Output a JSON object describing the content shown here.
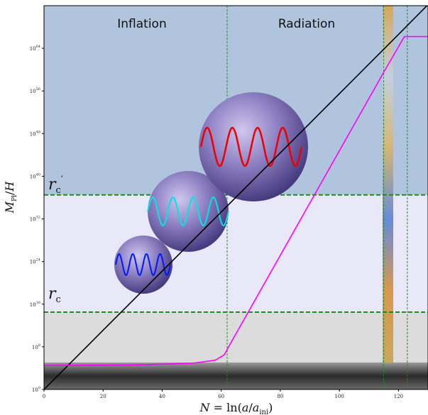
{
  "chart_data": {
    "type": "line",
    "xlabel": "N = ln(a/a_ini)",
    "ylabel": "M_Pl/H",
    "xlim": [
      0,
      130
    ],
    "ylim_log10": [
      0,
      72
    ],
    "x_ticks": [
      0,
      20,
      40,
      60,
      80,
      100,
      120
    ],
    "y_ticks": [
      {
        "exp": 0,
        "label": "10^0"
      },
      {
        "exp": 8,
        "label": "10^8"
      },
      {
        "exp": 16,
        "label": "10^16"
      },
      {
        "exp": 24,
        "label": "10^24"
      },
      {
        "exp": 32,
        "label": "10^32"
      },
      {
        "exp": 40,
        "label": "10^40"
      },
      {
        "exp": 48,
        "label": "10^48"
      },
      {
        "exp": 56,
        "label": "10^56"
      },
      {
        "exp": 64,
        "label": "10^64"
      }
    ],
    "regions": [
      {
        "name": "Inflation",
        "from_x": 0,
        "to_x": 62
      },
      {
        "name": "Radiation",
        "from_x": 62,
        "to_x": 130
      }
    ],
    "vertical_lines_x": [
      62,
      115,
      123
    ],
    "horizontal_lines": [
      {
        "label": "r_c",
        "log10_y": 14.5
      },
      {
        "label": "r'_c",
        "log10_y": 36.5
      }
    ],
    "series": [
      {
        "color": "#000000",
        "points": [
          [
            0,
            0
          ],
          [
            20,
            11.1
          ],
          [
            40,
            22.2
          ],
          [
            60,
            33.3
          ],
          [
            80,
            44.4
          ],
          [
            100,
            55.5
          ],
          [
            120,
            66.6
          ],
          [
            130,
            72.2
          ]
        ]
      },
      {
        "color": "#ff00ff",
        "points": [
          [
            0,
            4.5
          ],
          [
            30,
            4.6
          ],
          [
            50,
            4.9
          ],
          [
            58,
            5.5
          ],
          [
            61,
            6.5
          ],
          [
            63,
            8.5
          ],
          [
            115,
            59.5
          ],
          [
            122,
            66.2
          ],
          [
            130,
            66.2
          ]
        ]
      }
    ],
    "bubbles": [
      {
        "wave_color": "#0019ff"
      },
      {
        "wave_color": "#00e6e6"
      },
      {
        "wave_color": "#ee0000"
      }
    ],
    "colors": {
      "top_band": "#b0c4de",
      "mid_band": "#e8e8f8",
      "low_band": "#dcdcdc",
      "dashed": "#1f8a1f"
    }
  }
}
